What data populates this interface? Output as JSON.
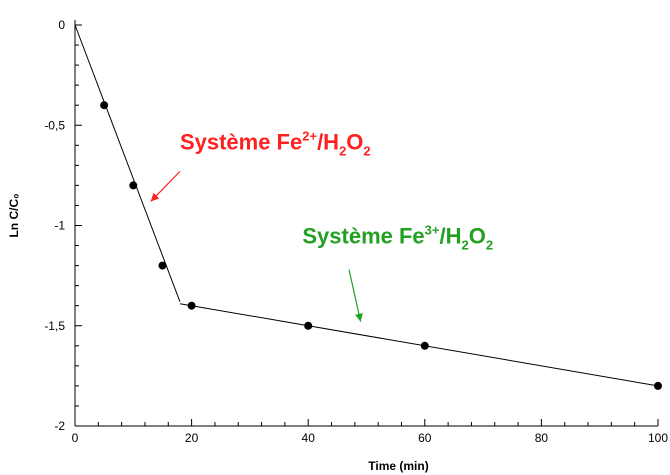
{
  "chart_data": {
    "type": "line",
    "title": "",
    "xlabel": "Time (min)",
    "ylabel": "Ln C/C₀",
    "xlim": [
      0,
      100
    ],
    "ylim": [
      -2,
      0
    ],
    "x_ticks": [
      0,
      20,
      40,
      60,
      80,
      100
    ],
    "x_tick_labels": [
      "0",
      "20",
      "40",
      "60",
      "80",
      "100"
    ],
    "y_ticks": [
      0,
      -0.5,
      -1,
      -1.5,
      -2
    ],
    "y_tick_labels": [
      "0",
      "-0,5",
      "-1",
      "-1,5",
      "-2"
    ],
    "grid": false,
    "series": [
      {
        "markers": [
          {
            "x": 5,
            "y": -0.4
          },
          {
            "x": 10,
            "y": -0.8
          },
          {
            "x": 15,
            "y": -1.2
          },
          {
            "x": 20,
            "y": -1.4
          },
          {
            "x": 40,
            "y": -1.5
          },
          {
            "x": 60,
            "y": -1.6
          },
          {
            "x": 100,
            "y": -1.8
          }
        ],
        "fit_lines": [
          {
            "x": [
              0,
              18
            ],
            "y": [
              0,
              -1.38
            ]
          },
          {
            "x": [
              18,
              100
            ],
            "y": [
              -1.39,
              -1.8
            ]
          }
        ]
      }
    ],
    "annotations": [
      {
        "prefix": "Système Fe",
        "sup": "2+",
        "mid": "/H",
        "sub1": "2",
        "o": "O",
        "sub2": "2",
        "color": "#ff2020",
        "text_at": {
          "x": 18,
          "y": -0.58
        },
        "arrow_from": {
          "x": 18,
          "y": -0.73
        },
        "arrow_to": {
          "x": 13,
          "y": -0.88
        }
      },
      {
        "prefix": "Système Fe",
        "sup": "3+",
        "mid": "/H",
        "sub1": "2",
        "o": "O",
        "sub2": "2",
        "color": "#22a022",
        "text_at": {
          "x": 39,
          "y": -1.05
        },
        "arrow_from": {
          "x": 47,
          "y": -1.22
        },
        "arrow_to": {
          "x": 49,
          "y": -1.48
        }
      }
    ]
  }
}
